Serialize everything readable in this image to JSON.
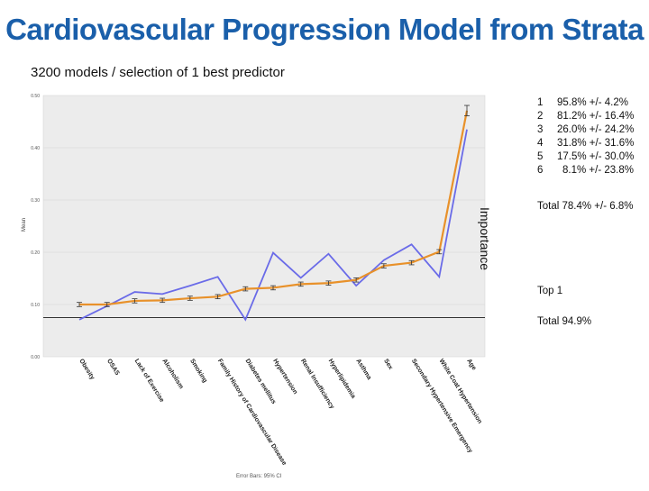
{
  "title": "Cardiovascular Progression Model from Strata",
  "subtitle": "3200 models / selection of 1 best predictor",
  "side_label": "Importance",
  "stats": [
    {
      "rank": "1",
      "value": "95.8% +/- 4.2%"
    },
    {
      "rank": "2",
      "value": "81.2% +/- 16.4%"
    },
    {
      "rank": "3",
      "value": "26.0% +/- 24.2%"
    },
    {
      "rank": "4",
      "value": "31.8% +/- 31.6%"
    },
    {
      "rank": "5",
      "value": "17.5% +/- 30.0%"
    },
    {
      "rank": "6",
      "value": "8.1% +/- 23.8%"
    }
  ],
  "total_all": "Total 78.4% +/- 6.8%",
  "top_label": "Top 1",
  "total_top": "Total 94.9%",
  "chart_data": {
    "type": "line",
    "title": "",
    "xlabel": "",
    "ylabel": "Mean",
    "ylim": [
      0.0,
      0.5
    ],
    "yticks": [
      "0.00",
      "0.10",
      "0.20",
      "0.30",
      "0.40",
      "0.50"
    ],
    "reference_line": 0.075,
    "footnote": "Error Bars: 95% CI",
    "categories": [
      "Obesity",
      "OSAS",
      "Lack of Exercise",
      "Alcoholism",
      "Smoking",
      "Family History of Cardiovascular Disease",
      "Diabetes mellitus",
      "Hypertension",
      "Renal Insufficiency",
      "Hyperlipidemia",
      "Asthma",
      "Sex",
      "Secondary Hypertensive Emergency",
      "White Coat Hypertension",
      "Age"
    ],
    "series": [
      {
        "name": "Mean (orange)",
        "color": "#e8912a",
        "values": [
          0.1,
          0.1,
          0.107,
          0.108,
          0.112,
          0.115,
          0.13,
          0.132,
          0.139,
          0.141,
          0.147,
          0.174,
          0.18,
          0.201,
          0.471
        ],
        "error": 0.004
      },
      {
        "name": "Comparison (blue)",
        "color": "#6a6be8",
        "values": [
          0.071,
          0.097,
          0.124,
          0.12,
          0.136,
          0.153,
          0.071,
          0.199,
          0.151,
          0.197,
          0.136,
          0.185,
          0.215,
          0.153,
          0.435
        ]
      }
    ]
  },
  "colors": {
    "title": "#1a5faa",
    "plot_bg": "#ececec",
    "grid": "#d6d6d6"
  }
}
